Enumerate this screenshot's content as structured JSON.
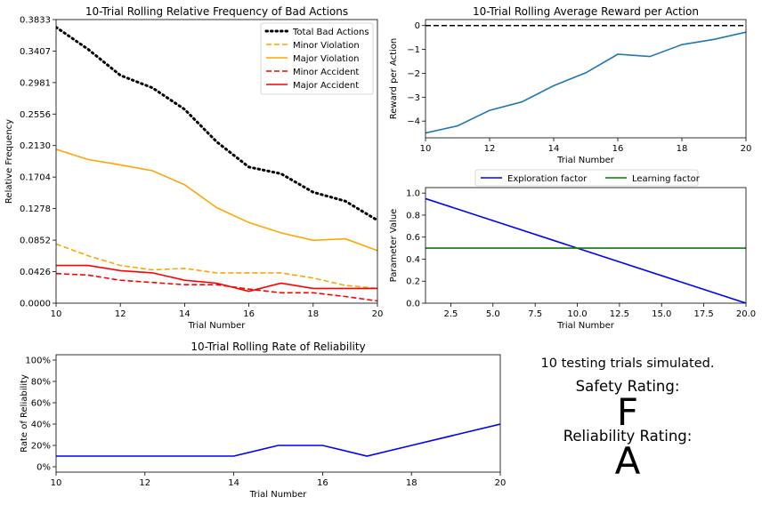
{
  "chart_data": [
    {
      "type": "line",
      "title": "10-Trial Rolling Relative Frequency of Bad Actions",
      "xlabel": "Trial Number",
      "ylabel": "Relative Frequency",
      "xlim": [
        10,
        20
      ],
      "ylim": [
        0,
        0.3833
      ],
      "xticks": [
        10,
        12,
        14,
        16,
        18,
        20
      ],
      "xtick_labels": [
        "10",
        "12",
        "14",
        "16",
        "18",
        "20"
      ],
      "yticks": [
        0,
        0.0426,
        0.0852,
        0.1278,
        0.1704,
        0.213,
        0.2556,
        0.2981,
        0.3407,
        0.3833
      ],
      "ytick_labels": [
        "0.0000",
        "0.0426",
        "0.0852",
        "0.1278",
        "0.1704",
        "0.2130",
        "0.2556",
        "0.2981",
        "0.3407",
        "0.3833"
      ],
      "legend_position": "top-right",
      "x": [
        10,
        11,
        12,
        13,
        14,
        15,
        16,
        17,
        18,
        19,
        20
      ],
      "series": [
        {
          "name": "Total Bad Actions",
          "color": "#000000",
          "style": "dotted",
          "values": [
            0.373,
            0.343,
            0.308,
            0.291,
            0.262,
            0.218,
            0.184,
            0.175,
            0.15,
            0.138,
            0.112
          ]
        },
        {
          "name": "Minor Violation",
          "color": "#ffa500",
          "style": "dashed",
          "values": [
            0.08,
            0.064,
            0.051,
            0.045,
            0.047,
            0.041,
            0.041,
            0.041,
            0.034,
            0.024,
            0.02
          ]
        },
        {
          "name": "Major Violation",
          "color": "#ffa500",
          "style": "solid",
          "values": [
            0.208,
            0.194,
            0.187,
            0.179,
            0.16,
            0.129,
            0.109,
            0.095,
            0.085,
            0.087,
            0.071
          ]
        },
        {
          "name": "Minor Accident",
          "color": "#ff0000",
          "style": "dashed",
          "values": [
            0.04,
            0.038,
            0.031,
            0.028,
            0.025,
            0.025,
            0.019,
            0.014,
            0.014,
            0.009,
            0.003
          ]
        },
        {
          "name": "Major Accident",
          "color": "#ff0000",
          "style": "solid",
          "values": [
            0.051,
            0.051,
            0.044,
            0.041,
            0.031,
            0.027,
            0.016,
            0.027,
            0.02,
            0.02,
            0.02
          ]
        }
      ]
    },
    {
      "type": "line",
      "title": "10-Trial Rolling Average Reward per Action",
      "xlabel": "Trial Number",
      "ylabel": "Reward per Action",
      "xlim": [
        10,
        20
      ],
      "ylim": [
        -4.7,
        0.25
      ],
      "xticks": [
        10,
        12,
        14,
        16,
        18,
        20
      ],
      "xtick_labels": [
        "10",
        "12",
        "14",
        "16",
        "18",
        "20"
      ],
      "yticks": [
        0,
        -1,
        -2,
        -3,
        -4
      ],
      "ytick_labels": [
        "0",
        "−1",
        "−2",
        "−3",
        "−4"
      ],
      "reference_line": {
        "y": 0,
        "color": "#000000",
        "style": "dashed"
      },
      "x": [
        10,
        11,
        12,
        13,
        14,
        15,
        16,
        17,
        18,
        19,
        20
      ],
      "series": [
        {
          "color": "#1f77b4",
          "style": "solid",
          "values": [
            -4.5,
            -4.2,
            -3.55,
            -3.2,
            -2.52,
            -1.98,
            -1.2,
            -1.3,
            -0.8,
            -0.58,
            -0.28
          ]
        }
      ]
    },
    {
      "type": "line",
      "xlabel": "Trial Number",
      "ylabel": "Parameter Value",
      "xlim": [
        1,
        20
      ],
      "ylim": [
        0,
        1.05
      ],
      "xticks": [
        2.5,
        5,
        7.5,
        10,
        12.5,
        15,
        17.5,
        20
      ],
      "xtick_labels": [
        "2.5",
        "5.0",
        "7.5",
        "10.0",
        "12.5",
        "15.0",
        "17.5",
        "20.0"
      ],
      "yticks": [
        0,
        0.2,
        0.4,
        0.6,
        0.8,
        1.0
      ],
      "ytick_labels": [
        "0.0",
        "0.2",
        "0.4",
        "0.6",
        "0.8",
        "1.0"
      ],
      "legend_position": "top-center outside",
      "x": [
        1,
        20
      ],
      "series": [
        {
          "name": "Exploration factor",
          "color": "#0000ff",
          "style": "solid",
          "values": [
            0.95,
            0.0
          ]
        },
        {
          "name": "Learning factor",
          "color": "#008000",
          "style": "solid",
          "values": [
            0.5,
            0.5
          ]
        }
      ]
    },
    {
      "type": "line",
      "title": "10-Trial Rolling Rate of Reliability",
      "xlabel": "Trial Number",
      "ylabel": "Rate of Reliability",
      "xlim": [
        10,
        20
      ],
      "ylim": [
        -5,
        105
      ],
      "xticks": [
        10,
        12,
        14,
        16,
        18,
        20
      ],
      "xtick_labels": [
        "10",
        "12",
        "14",
        "16",
        "18",
        "20"
      ],
      "yticks": [
        0,
        20,
        40,
        60,
        80,
        100
      ],
      "ytick_labels": [
        "0%",
        "20%",
        "40%",
        "60%",
        "80%",
        "100%"
      ],
      "x": [
        10,
        11,
        12,
        13,
        14,
        15,
        16,
        17,
        18,
        19,
        20
      ],
      "series": [
        {
          "color": "#0000ff",
          "style": "solid",
          "values": [
            10,
            10,
            10,
            10,
            10,
            20,
            20,
            10,
            20,
            30,
            40
          ]
        }
      ]
    }
  ],
  "summary": {
    "trials_text": "10 testing trials simulated.",
    "safety_label": "Safety Rating:",
    "safety_grade": "F",
    "safety_color": "#ff0000",
    "reliability_label": "Reliability Rating:",
    "reliability_grade": "A",
    "reliability_color": "#008000"
  }
}
